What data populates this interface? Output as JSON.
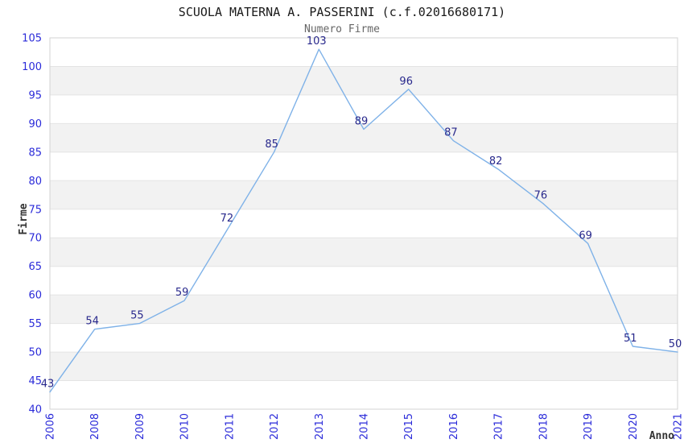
{
  "chart_data": {
    "type": "line",
    "title": "SCUOLA MATERNA A. PASSERINI (c.f.02016680171)",
    "subtitle": "Numero Firme",
    "xlabel": "Anno",
    "ylabel": "Firme",
    "categories": [
      "2006",
      "2008",
      "2009",
      "2010",
      "2011",
      "2012",
      "2013",
      "2014",
      "2015",
      "2016",
      "2017",
      "2018",
      "2019",
      "2020",
      "2021"
    ],
    "values": [
      43,
      54,
      55,
      59,
      72,
      85,
      103,
      89,
      96,
      87,
      82,
      76,
      69,
      51,
      50
    ],
    "ylim": [
      40,
      105
    ],
    "yticks": [
      40,
      45,
      50,
      55,
      60,
      65,
      70,
      75,
      80,
      85,
      90,
      95,
      100,
      105
    ],
    "grid": "horizontal-alternating-bands",
    "legend": "none",
    "data_labels": "shown-above-points",
    "colors": {
      "line": "#7fb2e8",
      "point_label": "#28288c",
      "tick_label": "#2b2bd9",
      "title": "#1a1a1a",
      "subtitle": "#666666",
      "axis_label": "#333333",
      "band_gray": "#f2f2f2",
      "band_white": "#ffffff",
      "gridline": "#e4e4e4",
      "plot_border": "#d3d3d3",
      "background": "#ffffff"
    }
  }
}
